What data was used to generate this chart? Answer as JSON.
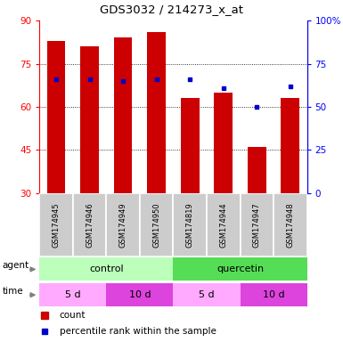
{
  "title": "GDS3032 / 214273_x_at",
  "samples": [
    "GSM174945",
    "GSM174946",
    "GSM174949",
    "GSM174950",
    "GSM174819",
    "GSM174944",
    "GSM174947",
    "GSM174948"
  ],
  "bar_heights": [
    83,
    81,
    84,
    86,
    63,
    65,
    46,
    63
  ],
  "blue_dot_values": [
    66,
    66,
    65,
    66,
    66,
    61,
    50,
    62
  ],
  "bar_color": "#CC0000",
  "dot_color": "#0000CC",
  "ylim_left": [
    30,
    90
  ],
  "ylim_right": [
    0,
    100
  ],
  "yticks_left": [
    30,
    45,
    60,
    75,
    90
  ],
  "yticks_right": [
    0,
    25,
    50,
    75,
    100
  ],
  "yticklabels_right": [
    "0",
    "25",
    "50",
    "75",
    "100%"
  ],
  "grid_values": [
    45,
    60,
    75
  ],
  "agent_groups": [
    {
      "label": "control",
      "color": "#BBFFBB",
      "start": 0,
      "end": 4
    },
    {
      "label": "quercetin",
      "color": "#55DD55",
      "start": 4,
      "end": 8
    }
  ],
  "time_groups": [
    {
      "label": "5 d",
      "color": "#FFAAFF",
      "start": 0,
      "end": 2
    },
    {
      "label": "10 d",
      "color": "#DD44DD",
      "start": 2,
      "end": 4
    },
    {
      "label": "5 d",
      "color": "#FFAAFF",
      "start": 4,
      "end": 6
    },
    {
      "label": "10 d",
      "color": "#DD44DD",
      "start": 6,
      "end": 8
    }
  ],
  "legend_count_color": "#CC0000",
  "legend_dot_color": "#0000CC",
  "bar_width": 0.55,
  "sample_bg_color": "#CCCCCC"
}
